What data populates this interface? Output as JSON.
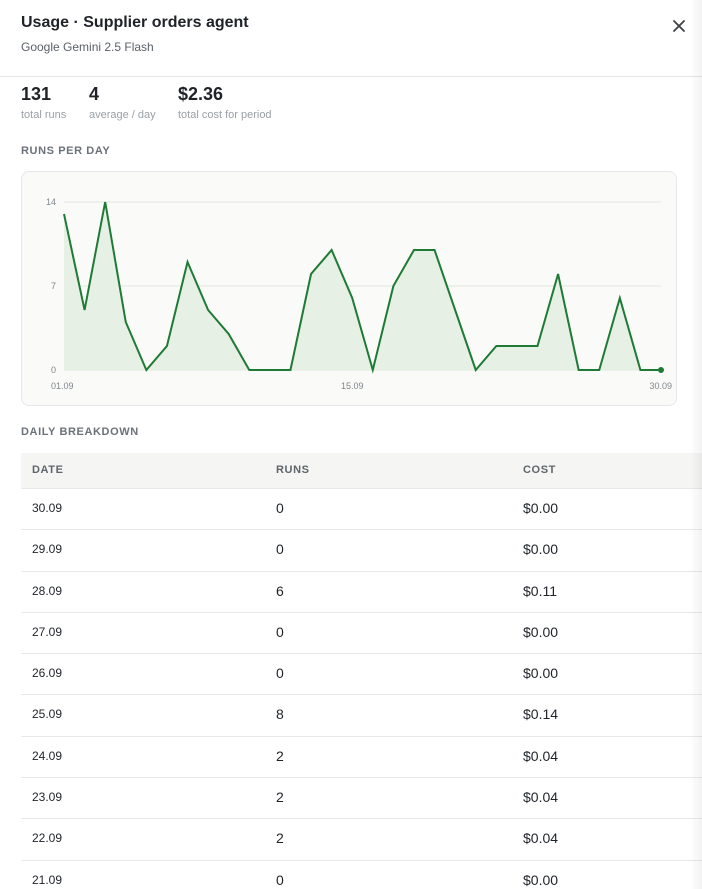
{
  "header": {
    "title": "Usage · Supplier orders agent",
    "subtitle": "Google Gemini 2.5 Flash",
    "close_icon": "close-icon"
  },
  "stats": [
    {
      "value": "131",
      "label": "total runs"
    },
    {
      "value": "4",
      "label": "average / day"
    },
    {
      "value": "$2.36",
      "label": "total cost for period"
    }
  ],
  "chart_section_label": "RUNS PER DAY",
  "chart_data": {
    "type": "area",
    "title": "",
    "xlabel": "",
    "ylabel": "",
    "x": [
      "01.09",
      "02.09",
      "03.09",
      "04.09",
      "05.09",
      "06.09",
      "07.09",
      "08.09",
      "09.09",
      "10.09",
      "11.09",
      "12.09",
      "13.09",
      "14.09",
      "15.09",
      "16.09",
      "17.09",
      "18.09",
      "19.09",
      "20.09",
      "21.09",
      "22.09",
      "23.09",
      "24.09",
      "25.09",
      "26.09",
      "27.09",
      "28.09",
      "29.09",
      "30.09"
    ],
    "values": [
      13,
      5,
      14,
      4,
      0,
      2,
      9,
      5,
      3,
      0,
      0,
      0,
      8,
      10,
      6,
      0,
      7,
      10,
      10,
      5,
      0,
      2,
      2,
      2,
      8,
      0,
      0,
      6,
      0,
      0
    ],
    "ylim": [
      0,
      14
    ],
    "yticks": [
      "0",
      "7",
      "14"
    ],
    "xticks": [
      {
        "index": 0,
        "label": "01.09"
      },
      {
        "index": 14,
        "label": "15.09"
      },
      {
        "index": 29,
        "label": "30.09"
      }
    ],
    "grid": true,
    "line_color": "#1e7a35",
    "fill_color": "#e6f0e5"
  },
  "breakdown_section_label": "DAILY BREAKDOWN",
  "table": {
    "headers": [
      "DATE",
      "RUNS",
      "COST"
    ],
    "rows": [
      [
        "30.09",
        "0",
        "$0.00"
      ],
      [
        "29.09",
        "0",
        "$0.00"
      ],
      [
        "28.09",
        "6",
        "$0.11"
      ],
      [
        "27.09",
        "0",
        "$0.00"
      ],
      [
        "26.09",
        "0",
        "$0.00"
      ],
      [
        "25.09",
        "8",
        "$0.14"
      ],
      [
        "24.09",
        "2",
        "$0.04"
      ],
      [
        "23.09",
        "2",
        "$0.04"
      ],
      [
        "22.09",
        "2",
        "$0.04"
      ],
      [
        "21.09",
        "0",
        "$0.00"
      ]
    ]
  }
}
